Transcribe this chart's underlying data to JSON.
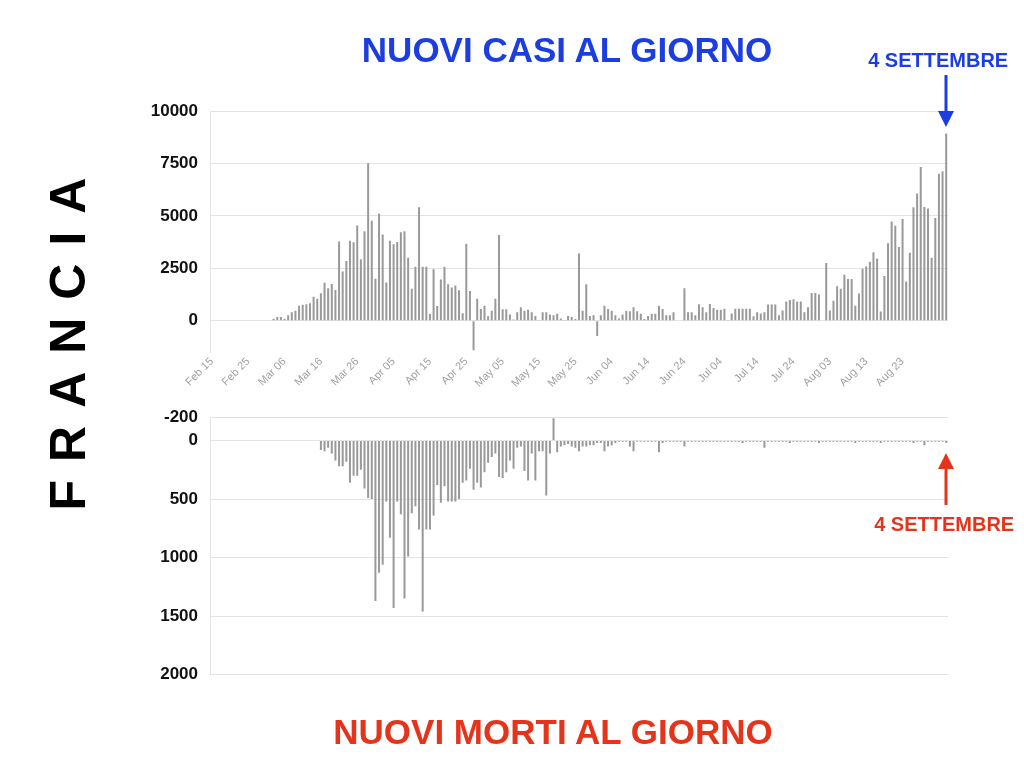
{
  "chart_data": [
    {
      "type": "bar",
      "title": "NUOVI CASI AL GIORNO",
      "ylabel": "FRANCIA",
      "color": "#999999",
      "grid": "y",
      "ylim": [
        -1500,
        10000
      ],
      "yticks": [
        0,
        2500,
        5000,
        7500,
        10000
      ],
      "annotations": [
        "4 SETTEMBRE"
      ],
      "categories": [
        "Feb 15",
        null,
        null,
        null,
        null,
        null,
        null,
        null,
        null,
        null,
        "Feb 25",
        null,
        null,
        null,
        null,
        null,
        null,
        null,
        null,
        null,
        "Mar 06",
        null,
        null,
        null,
        null,
        null,
        null,
        null,
        null,
        null,
        "Mar 16",
        null,
        null,
        null,
        null,
        null,
        null,
        null,
        null,
        null,
        "Mar 26",
        null,
        null,
        null,
        null,
        null,
        null,
        null,
        null,
        null,
        "Apr 05",
        null,
        null,
        null,
        null,
        null,
        null,
        null,
        null,
        null,
        "Apr 15",
        null,
        null,
        null,
        null,
        null,
        null,
        null,
        null,
        null,
        "Apr 25",
        null,
        null,
        null,
        null,
        null,
        null,
        null,
        null,
        null,
        "May 05",
        null,
        null,
        null,
        null,
        null,
        null,
        null,
        null,
        null,
        "May 15",
        null,
        null,
        null,
        null,
        null,
        null,
        null,
        null,
        null,
        "May 25",
        null,
        null,
        null,
        null,
        null,
        null,
        null,
        null,
        null,
        "Jun 04",
        null,
        null,
        null,
        null,
        null,
        null,
        null,
        null,
        null,
        "Jun 14",
        null,
        null,
        null,
        null,
        null,
        null,
        null,
        null,
        null,
        "Jun 24",
        null,
        null,
        null,
        null,
        null,
        null,
        null,
        null,
        null,
        "Jul 04",
        null,
        null,
        null,
        null,
        null,
        null,
        null,
        null,
        null,
        "Jul 14",
        null,
        null,
        null,
        null,
        null,
        null,
        null,
        null,
        null,
        "Jul 24",
        null,
        null,
        null,
        null,
        null,
        null,
        null,
        null,
        null,
        "Aug 03",
        null,
        null,
        null,
        null,
        null,
        null,
        null,
        null,
        null,
        "Aug 13",
        null,
        null,
        null,
        null,
        null,
        null,
        null,
        null,
        null,
        "Aug 23",
        null,
        null,
        null,
        null,
        null,
        null,
        null,
        null,
        null,
        null,
        null,
        null
      ],
      "values": [
        0,
        0,
        0,
        0,
        0,
        0,
        0,
        0,
        0,
        0,
        0,
        0,
        0,
        0,
        0,
        0,
        0,
        100,
        180,
        180,
        100,
        260,
        410,
        480,
        710,
        760,
        790,
        830,
        1140,
        1050,
        1310,
        1810,
        1550,
        1750,
        1470,
        3780,
        2350,
        2850,
        3820,
        3740,
        4540,
        2940,
        4270,
        7510,
        4770,
        2000,
        5110,
        4110,
        1820,
        3820,
        3650,
        3760,
        4220,
        4270,
        3000,
        1530,
        2580,
        5410,
        2580,
        2580,
        320,
        2460,
        700,
        1970,
        2580,
        1740,
        1590,
        1680,
        1460,
        360,
        3670,
        1420,
        -1410,
        1050,
        560,
        710,
        210,
        480,
        1050,
        4090,
        550,
        550,
        300,
        60,
        410,
        640,
        480,
        530,
        410,
        230,
        30,
        410,
        410,
        300,
        260,
        330,
        110,
        30,
        230,
        180,
        80,
        3210,
        480,
        1740,
        230,
        260,
        -730,
        260,
        710,
        560,
        480,
        260,
        110,
        300,
        480,
        450,
        640,
        450,
        330,
        80,
        230,
        330,
        330,
        710,
        560,
        260,
        260,
        410,
        0,
        0,
        1550,
        410,
        410,
        260,
        790,
        640,
        410,
        800,
        610,
        520,
        520,
        570,
        30,
        340,
        570,
        570,
        570,
        570,
        570,
        210,
        410,
        340,
        410,
        770,
        770,
        770,
        260,
        490,
        920,
        990,
        1030,
        920,
        920,
        410,
        640,
        1320,
        1320,
        1250,
        0,
        2750,
        490,
        950,
        1640,
        1530,
        2200,
        1990,
        1990,
        720,
        1300,
        2480,
        2590,
        2820,
        3270,
        2970,
        440,
        2140,
        3700,
        4740,
        4530,
        3520,
        4850,
        1870,
        3240,
        5420,
        6070,
        7340,
        5430,
        5360,
        3010,
        4900,
        7020,
        7130,
        8940
      ]
    },
    {
      "type": "bar",
      "title": "NUOVI MORTI AL GIORNO",
      "color": "#999999",
      "grid": "y",
      "ylim": [
        2000,
        -200
      ],
      "yticks": [
        -200,
        0,
        500,
        1000,
        1500,
        2000
      ],
      "annotations": [
        "4 SETTEMBRE"
      ],
      "categories": [
        null,
        null,
        null,
        null,
        null,
        null,
        null,
        null,
        null,
        null,
        null,
        null,
        null,
        null,
        null,
        null,
        null,
        null,
        null,
        null,
        null,
        null,
        null,
        null,
        null,
        null,
        null,
        null,
        null,
        null,
        null,
        null,
        null,
        null,
        null,
        null,
        null,
        null,
        null,
        null,
        null,
        null,
        null,
        null,
        null,
        null,
        null,
        null,
        null,
        null,
        null,
        null,
        null,
        null,
        null,
        null,
        null,
        null,
        null,
        null,
        null,
        null,
        null,
        null,
        null,
        null,
        null,
        null,
        null,
        null,
        null,
        null,
        null,
        null,
        null,
        null,
        null,
        null,
        null,
        null,
        null,
        null,
        null,
        null,
        null,
        null,
        null,
        null,
        null,
        null,
        null,
        null,
        null,
        null,
        null,
        null,
        null,
        null,
        null,
        null,
        null,
        null,
        null,
        null,
        null,
        null,
        null,
        null,
        null,
        null,
        null,
        null,
        null,
        null,
        null,
        null,
        null,
        null,
        null,
        null,
        null,
        null,
        null,
        null,
        null,
        null,
        null,
        null,
        null,
        null,
        null,
        null,
        null,
        null,
        null,
        null,
        null,
        null,
        null,
        null,
        null,
        null,
        null,
        null,
        null,
        null,
        null,
        null,
        null,
        null,
        null,
        null,
        null,
        null,
        null,
        null,
        null,
        null,
        null,
        null,
        null,
        null,
        null,
        null,
        null,
        null,
        null,
        null,
        null,
        null,
        null,
        null,
        null,
        null,
        null,
        null,
        null,
        null,
        null,
        null,
        null,
        null,
        null,
        null,
        null,
        null,
        null,
        null,
        null,
        null,
        null,
        null,
        null,
        null,
        null,
        null,
        null,
        null,
        null,
        null,
        null,
        null,
        null
      ],
      "values": [
        0,
        0,
        0,
        0,
        0,
        0,
        0,
        0,
        0,
        0,
        0,
        0,
        0,
        0,
        0,
        0,
        0,
        0,
        0,
        0,
        0,
        0,
        0,
        0,
        0,
        0,
        0,
        0,
        0,
        0,
        80,
        90,
        60,
        110,
        170,
        220,
        220,
        180,
        360,
        300,
        300,
        250,
        410,
        490,
        500,
        1370,
        1130,
        1060,
        520,
        830,
        1430,
        520,
        630,
        1350,
        990,
        620,
        560,
        760,
        1460,
        760,
        760,
        640,
        380,
        530,
        390,
        520,
        520,
        520,
        500,
        360,
        340,
        240,
        420,
        360,
        400,
        270,
        190,
        140,
        110,
        310,
        320,
        270,
        170,
        240,
        60,
        50,
        260,
        340,
        110,
        340,
        90,
        90,
        470,
        110,
        -190,
        100,
        50,
        40,
        30,
        50,
        60,
        90,
        50,
        50,
        40,
        40,
        20,
        20,
        90,
        50,
        40,
        20,
        10,
        10,
        10,
        50,
        90,
        10,
        10,
        10,
        10,
        10,
        10,
        100,
        20,
        10,
        10,
        10,
        10,
        10,
        50,
        10,
        10,
        10,
        10,
        10,
        10,
        10,
        10,
        10,
        10,
        10,
        10,
        10,
        10,
        10,
        20,
        10,
        10,
        10,
        10,
        10,
        60,
        10,
        10,
        10,
        10,
        10,
        10,
        20,
        10,
        10,
        10,
        10,
        10,
        10,
        10,
        20,
        10,
        10,
        10,
        10,
        10,
        10,
        10,
        10,
        10,
        20,
        10,
        10,
        10,
        10,
        10,
        10,
        20,
        10,
        10,
        10,
        10,
        10,
        10,
        10,
        10,
        20,
        10,
        10,
        40,
        10,
        10,
        10,
        10,
        10,
        20
      ]
    }
  ]
}
